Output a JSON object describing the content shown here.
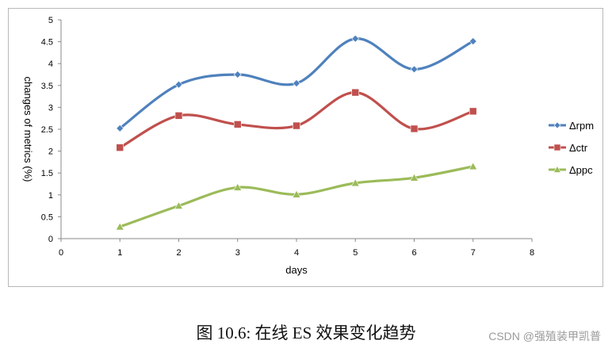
{
  "chart_data": {
    "type": "line",
    "title": "",
    "xlabel": "days",
    "ylabel": "changes of metrics (%)",
    "xlim": [
      0,
      8
    ],
    "ylim": [
      0,
      5
    ],
    "x_ticks": [
      "0",
      "1",
      "2",
      "3",
      "4",
      "5",
      "6",
      "7",
      "8"
    ],
    "y_ticks": [
      "0",
      "0.5",
      "1",
      "1.5",
      "2",
      "2.5",
      "3",
      "3.5",
      "4",
      "4.5",
      "5"
    ],
    "grid": false,
    "legend_position": "right",
    "x": [
      1,
      2,
      3,
      4,
      5,
      6,
      7
    ],
    "series": [
      {
        "name": "Δrpm",
        "color": "#4f81bd",
        "marker": "diamond",
        "values": [
          2.52,
          3.52,
          3.75,
          3.55,
          4.57,
          3.87,
          4.51
        ]
      },
      {
        "name": "Δctr",
        "color": "#c0504d",
        "marker": "square",
        "values": [
          2.08,
          2.81,
          2.61,
          2.58,
          3.34,
          2.51,
          2.91
        ]
      },
      {
        "name": "Δppc",
        "color": "#9bbb59",
        "marker": "triangle",
        "values": [
          0.27,
          0.75,
          1.17,
          1.01,
          1.27,
          1.39,
          1.65
        ]
      }
    ]
  },
  "caption": "图 10.6: 在线 ES 效果变化趋势",
  "watermark": "CSDN @强殖装甲凯普"
}
